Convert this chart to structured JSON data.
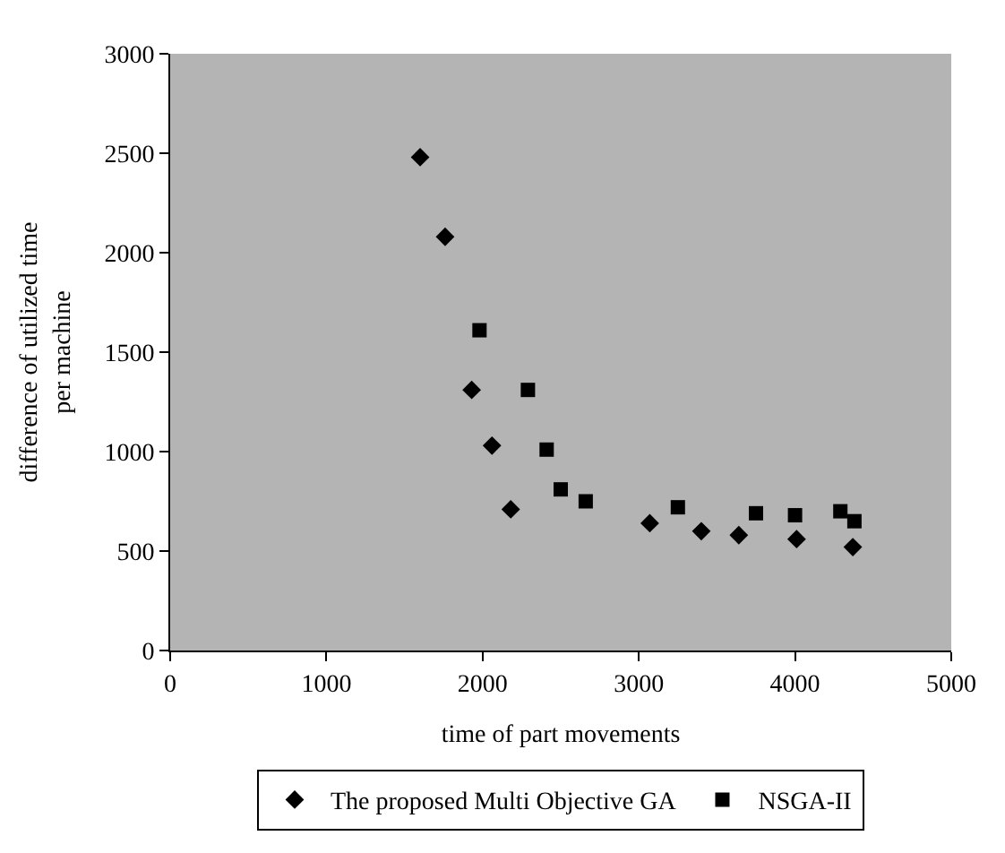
{
  "chart_data": {
    "type": "scatter",
    "xlabel": "time of part movements",
    "ylabel": "difference of utilized time\nper machine",
    "xlim": [
      0,
      5000
    ],
    "xticks": [
      0,
      1000,
      2000,
      3000,
      4000,
      5000
    ],
    "ylim": [
      0,
      3000
    ],
    "yticks": [
      0,
      500,
      1000,
      1500,
      2000,
      2500,
      3000
    ],
    "grid": false,
    "legend": "bottom",
    "series": [
      {
        "name": "The proposed Multi Objective GA",
        "color": "#000000",
        "marker": "diamond",
        "x": [
          1600,
          1760,
          1930,
          2060,
          2180,
          3070,
          3400,
          3640,
          4010,
          4370
        ],
        "values": [
          2480,
          2080,
          1310,
          1030,
          710,
          640,
          600,
          580,
          560,
          520
        ]
      },
      {
        "name": "NSGA-II",
        "color": "#000000",
        "marker": "square",
        "x": [
          1980,
          2290,
          2410,
          2500,
          2660,
          3250,
          3750,
          4000,
          4290,
          4380
        ],
        "values": [
          1610,
          1310,
          1010,
          810,
          750,
          720,
          690,
          680,
          700,
          650
        ]
      }
    ]
  }
}
